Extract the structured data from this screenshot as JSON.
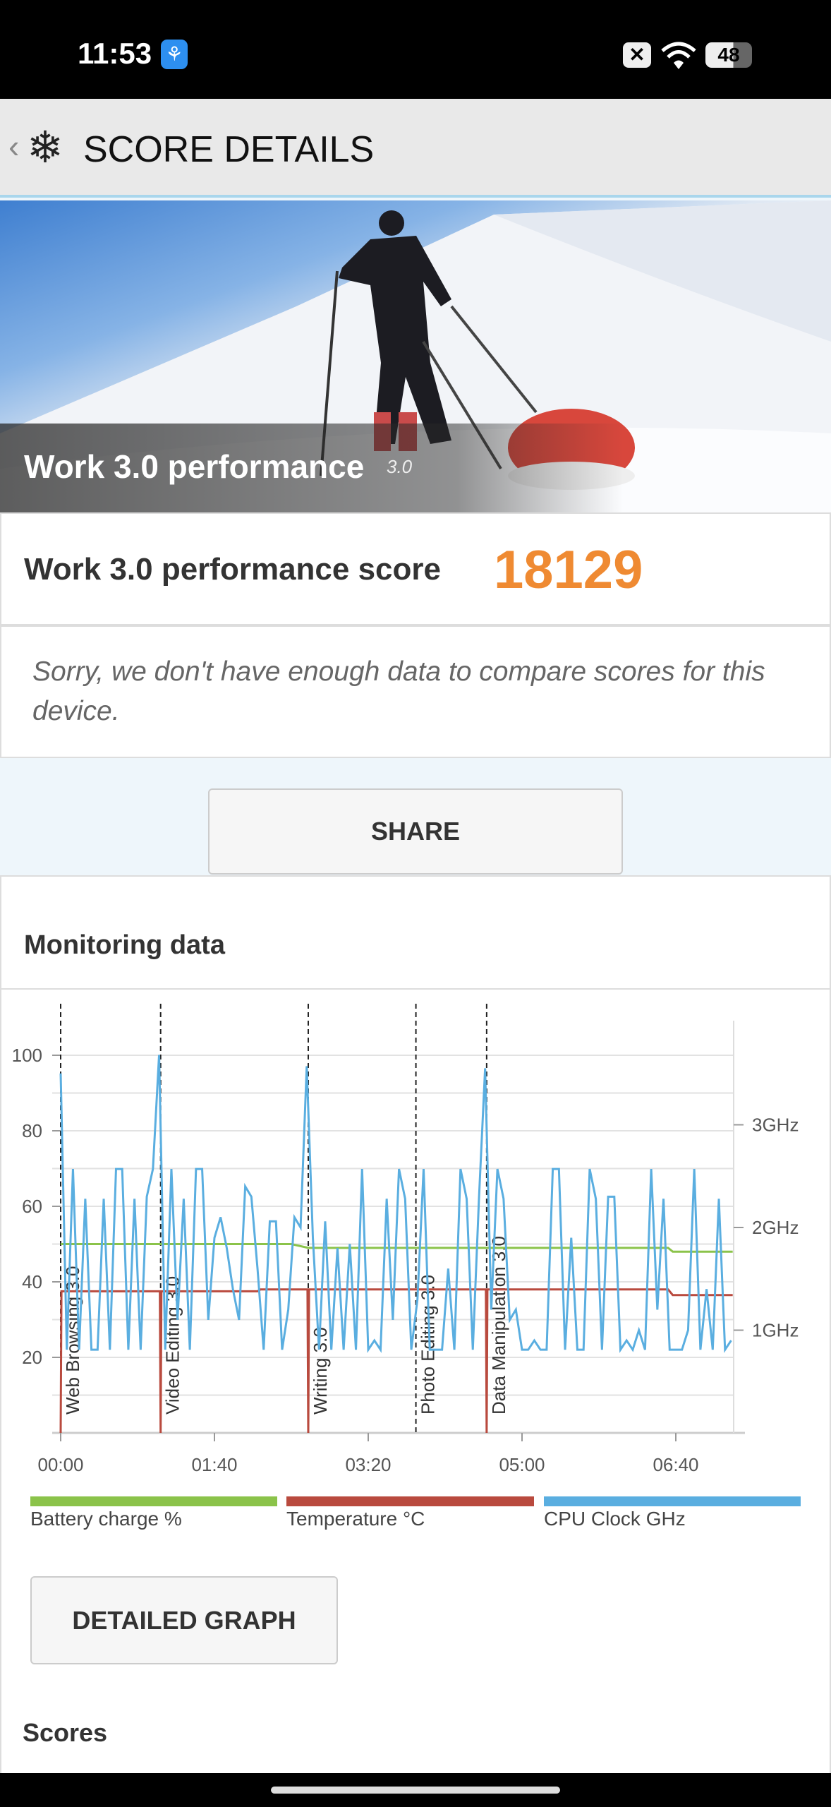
{
  "status_bar": {
    "time": "11:53",
    "battery": "48",
    "icons": [
      "app-notification-icon",
      "x-icon",
      "wifi-icon",
      "battery-icon"
    ]
  },
  "header": {
    "title": "SCORE DETAILS",
    "icons": [
      "back-chevron-icon",
      "snowflake-icon"
    ]
  },
  "hero": {
    "title": "Work 3.0 performance",
    "version": "3.0"
  },
  "score": {
    "label": "Work 3.0 performance score",
    "value": "18129",
    "color": "#ef8a32"
  },
  "message": "Sorry, we don't have enough data to compare scores for this device.",
  "share_label": "SHARE",
  "monitoring": {
    "title": "Monitoring data",
    "detailed_graph_label": "DETAILED GRAPH"
  },
  "scores_title": "Scores",
  "chart_data": {
    "type": "line",
    "xlabel": "",
    "ylabel": "",
    "x_unit": "seconds",
    "xlim": [
      0,
      437
    ],
    "ylim": [
      0,
      110
    ],
    "y2lim": [
      0,
      4
    ],
    "grid": true,
    "legend": "bottom",
    "x_ticks": [
      {
        "value": 0,
        "label": "00:00"
      },
      {
        "value": 100,
        "label": "01:40"
      },
      {
        "value": 200,
        "label": "03:20"
      },
      {
        "value": 300,
        "label": "05:00"
      },
      {
        "value": 400,
        "label": "06:40"
      }
    ],
    "y_ticks": [
      20,
      40,
      60,
      80,
      100
    ],
    "y2_ticks": [
      {
        "value": 1,
        "label": "1GHz"
      },
      {
        "value": 2,
        "label": "2GHz"
      },
      {
        "value": 3,
        "label": "3GHz"
      }
    ],
    "markers": [
      {
        "t": 0,
        "label": "Web Browsing 3.0"
      },
      {
        "t": 65,
        "label": "Video Editing 3.0"
      },
      {
        "t": 161,
        "label": "Writing 3.0"
      },
      {
        "t": 231,
        "label": "Photo Editing 3.0"
      },
      {
        "t": 277,
        "label": "Data Manipulation 3.0"
      }
    ],
    "series": [
      {
        "name": "Battery charge %",
        "color": "#8bc34a",
        "axis": "left",
        "points": [
          [
            0,
            50
          ],
          [
            150,
            50
          ],
          [
            161,
            49
          ],
          [
            395,
            49
          ],
          [
            398,
            48
          ],
          [
            437,
            48
          ]
        ]
      },
      {
        "name": "Temperature °C",
        "color": "#b94a3e",
        "axis": "left",
        "points": [
          [
            0,
            0
          ],
          [
            0.5,
            37.5
          ],
          [
            64.5,
            37.5
          ],
          [
            65,
            0
          ],
          [
            65.5,
            37.5
          ],
          [
            128,
            37.5
          ],
          [
            130,
            38
          ],
          [
            160.5,
            38
          ],
          [
            161,
            0
          ],
          [
            161.5,
            38
          ],
          [
            276.5,
            38
          ],
          [
            277,
            0
          ],
          [
            277.5,
            38
          ],
          [
            395,
            38
          ],
          [
            398,
            36.5
          ],
          [
            437,
            36.5
          ]
        ]
      },
      {
        "name": "CPU Clock GHz",
        "color": "#5aaee0",
        "axis": "right",
        "x_step": 4,
        "values": [
          3.5,
          0.81,
          2.57,
          0.81,
          2.28,
          0.81,
          0.81,
          2.28,
          0.81,
          2.57,
          2.57,
          0.81,
          2.28,
          0.81,
          2.3,
          2.57,
          3.68,
          0.81,
          2.57,
          1.1,
          2.28,
          0.81,
          2.57,
          2.57,
          1.1,
          1.9,
          2.1,
          1.8,
          1.4,
          1.1,
          2.4,
          2.3,
          1.6,
          0.81,
          2.06,
          2.06,
          0.81,
          1.2,
          2.1,
          2.0,
          3.57,
          1.9,
          0.81,
          2.06,
          0.81,
          1.8,
          0.81,
          1.84,
          0.81,
          2.57,
          0.81,
          0.9,
          0.81,
          2.28,
          1.1,
          2.57,
          2.28,
          0.81,
          1.3,
          2.57,
          0.81,
          0.81,
          0.81,
          1.6,
          0.81,
          2.57,
          2.28,
          0.81,
          2.28,
          3.55,
          1.2,
          2.57,
          2.28,
          1.1,
          1.2,
          0.81,
          0.81,
          0.9,
          0.81,
          0.81,
          2.57,
          2.57,
          0.81,
          1.9,
          0.81,
          0.81,
          2.57,
          2.28,
          0.81,
          2.3,
          2.3,
          0.81,
          0.9,
          0.81,
          1.0,
          0.81,
          2.57,
          1.2,
          2.28,
          0.81,
          0.81,
          0.81,
          1.0,
          2.57,
          0.81,
          1.4,
          0.81,
          2.28,
          0.81,
          0.9
        ]
      }
    ]
  }
}
